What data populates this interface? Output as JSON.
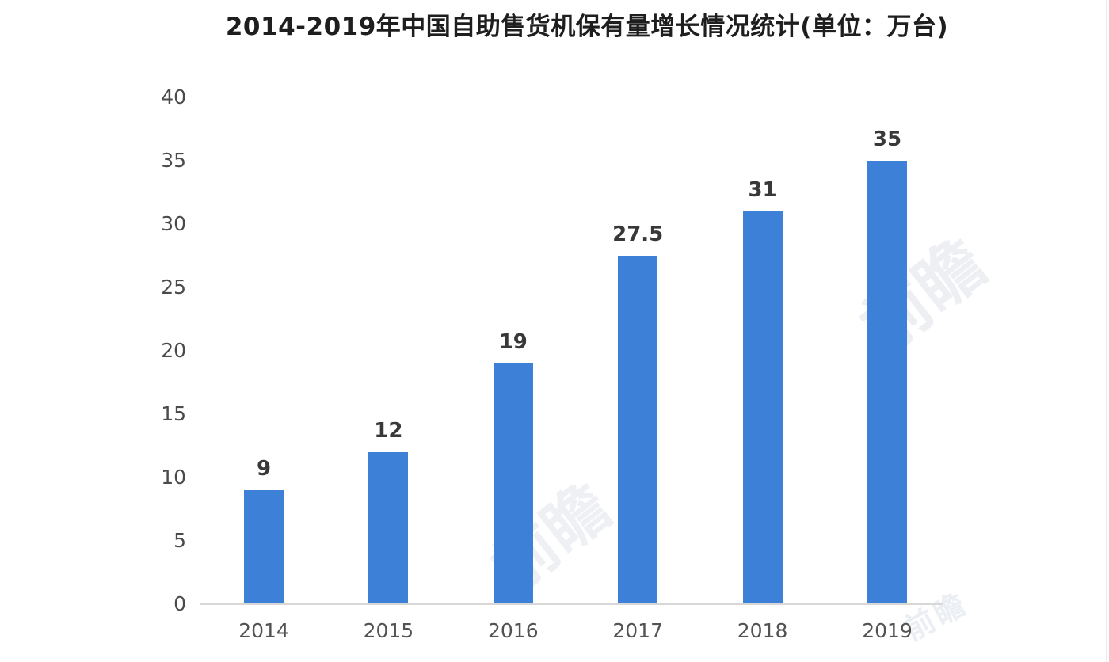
{
  "title": "2014-2019年中国自助售货机保有量增长情况统计(单位：万台)",
  "watermark": {
    "text": "前瞻"
  },
  "chart_data": {
    "type": "bar",
    "title": "2014-2019年中国自助售货机保有量增长情况统计(单位：万台)",
    "categories": [
      "2014",
      "2015",
      "2016",
      "2017",
      "2018",
      "2019"
    ],
    "values": [
      9,
      12,
      19,
      27.5,
      31,
      35
    ],
    "value_labels": [
      "9",
      "12",
      "19",
      "27.5",
      "31",
      "35"
    ],
    "xlabel": "",
    "ylabel": "",
    "ylim": [
      0,
      40
    ],
    "yticks": [
      0,
      5,
      10,
      15,
      20,
      25,
      30,
      35,
      40
    ],
    "grid": false,
    "legend": "none",
    "bar_color": "#3c80d8",
    "axis_line_color": "#d7d7d7",
    "tick_label_color": "#4a4a4a",
    "x_label_color": "#525252",
    "value_label_color": "#383838",
    "title_color": "#1e1e1e"
  }
}
